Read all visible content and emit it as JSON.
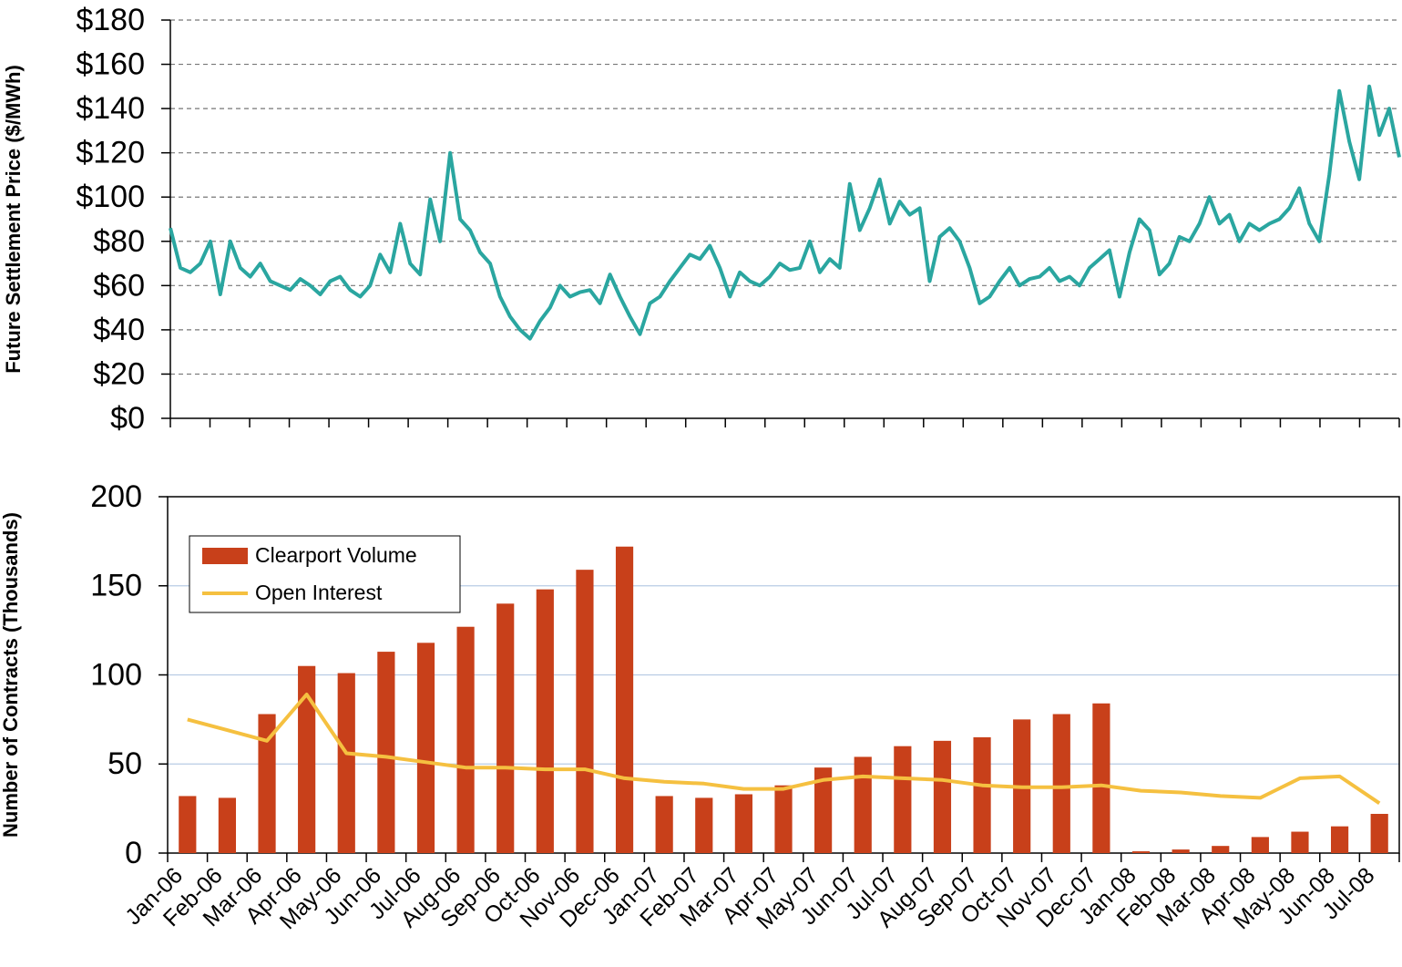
{
  "chart_data": [
    {
      "type": "line",
      "ylabel": "Future Settlement Price ($/MWh)",
      "color": "#2aa6a0",
      "values": [
        86,
        68,
        66,
        70,
        80,
        56,
        80,
        68,
        64,
        70,
        62,
        60,
        58,
        63,
        60,
        56,
        62,
        64,
        58,
        55,
        60,
        74,
        66,
        88,
        70,
        65,
        99,
        80,
        120,
        90,
        85,
        75,
        70,
        55,
        46,
        40,
        36,
        44,
        50,
        60,
        55,
        57,
        58,
        52,
        65,
        55,
        46,
        38,
        52,
        55,
        62,
        68,
        74,
        72,
        78,
        68,
        55,
        66,
        62,
        60,
        64,
        70,
        67,
        68,
        80,
        66,
        72,
        68,
        106,
        85,
        95,
        108,
        88,
        98,
        92,
        95,
        62,
        82,
        86,
        80,
        68,
        52,
        55,
        62,
        68,
        60,
        63,
        64,
        68,
        62,
        64,
        60,
        68,
        72,
        76,
        55,
        75,
        90,
        85,
        65,
        70,
        82,
        80,
        88,
        100,
        88,
        92,
        80,
        88,
        85,
        88,
        90,
        95,
        104,
        88,
        80,
        110,
        148,
        125,
        108,
        150,
        128,
        140,
        118
      ],
      "ylim": [
        0,
        180
      ],
      "yticks": [
        {
          "value": 0,
          "label": "$0"
        },
        {
          "value": 20,
          "label": "$20"
        },
        {
          "value": 40,
          "label": "$40"
        },
        {
          "value": 60,
          "label": "$60"
        },
        {
          "value": 80,
          "label": "$80"
        },
        {
          "value": 100,
          "label": "$100"
        },
        {
          "value": 120,
          "label": "$120"
        },
        {
          "value": 140,
          "label": "$140"
        },
        {
          "value": 160,
          "label": "$160"
        },
        {
          "value": 180,
          "label": "$180"
        }
      ],
      "grid": true
    },
    {
      "type": "combo",
      "ylabel": "Number of Contracts (Thousands)",
      "legend": "upper left",
      "categories": [
        "Jan-06",
        "Feb-06",
        "Mar-06",
        "Apr-06",
        "May-06",
        "Jun-06",
        "Jul-06",
        "Aug-06",
        "Sep-06",
        "Oct-06",
        "Nov-06",
        "Dec-06",
        "Jan-07",
        "Feb-07",
        "Mar-07",
        "Apr-07",
        "May-07",
        "Jun-07",
        "Jul-07",
        "Aug-07",
        "Sep-07",
        "Oct-07",
        "Nov-07",
        "Dec-07",
        "Jan-08",
        "Feb-08",
        "Mar-08",
        "Apr-08",
        "May-08",
        "Jun-08",
        "Jul-08"
      ],
      "series": [
        {
          "name": "Clearport Volume",
          "type": "bar",
          "color": "#c8401a",
          "values": [
            32,
            31,
            78,
            105,
            101,
            113,
            118,
            127,
            140,
            148,
            159,
            172,
            32,
            31,
            33,
            38,
            48,
            54,
            60,
            63,
            65,
            75,
            78,
            84,
            1,
            2,
            4,
            9,
            12,
            15,
            22
          ]
        },
        {
          "name": "Open Interest",
          "type": "line",
          "color": "#f5c040",
          "values": [
            75,
            69,
            63,
            89,
            56,
            54,
            51,
            48,
            48,
            47,
            47,
            42,
            40,
            39,
            36,
            36,
            41,
            43,
            42,
            41,
            38,
            37,
            37,
            38,
            35,
            34,
            32,
            31,
            42,
            43,
            28
          ]
        }
      ],
      "ylim": [
        0,
        200
      ],
      "yticks": [
        0,
        50,
        100,
        150,
        200
      ],
      "grid": true
    }
  ]
}
